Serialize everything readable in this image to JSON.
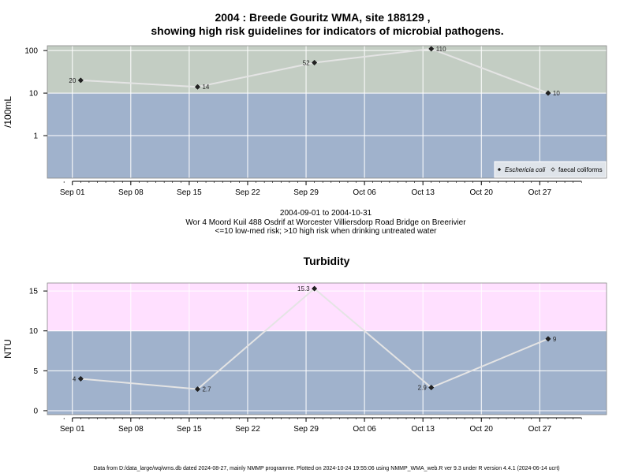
{
  "title_line1": "2004 : Breede Gouritz WMA, site 188129 ,",
  "title_line2": "showing high risk guidelines for indicators of microbial pathogens.",
  "captions": [
    "2004-09-01 to 2004-10-31",
    "Wor 4 Moord Kuil 488 Osdrif at Worcester Villiersdorp Road Bridge on Breerivier",
    "<=10 low-med risk; >10 high risk when drinking untreated water"
  ],
  "footer": "Data from D:/data_large/wq/wms.db dated 2024-08-27, mainly NMMP programme. Plotted on 2024-10-24 19:55:06 using NMMP_WMA_web.R ver 9.3 under R version 4.4.1 (2024-06-14 ucrt)",
  "chart_data": [
    {
      "type": "scatter",
      "title": "",
      "ylabel": "/100mL",
      "yscale": "log",
      "ylim": [
        0.1,
        130
      ],
      "yticks": [
        1,
        10,
        100
      ],
      "xlim": [
        "2004-08-29",
        "2004-11-04"
      ],
      "x_ticks": [
        {
          "date": "2004-09-01",
          "label": "Sep 01"
        },
        {
          "date": "2004-09-08",
          "label": "Sep 08"
        },
        {
          "date": "2004-09-15",
          "label": "Sep 15"
        },
        {
          "date": "2004-09-22",
          "label": "Sep 22"
        },
        {
          "date": "2004-09-29",
          "label": "Sep 29"
        },
        {
          "date": "2004-10-06",
          "label": "Oct 06"
        },
        {
          "date": "2004-10-13",
          "label": "Oct 13"
        },
        {
          "date": "2004-10-20",
          "label": "Oct 20"
        },
        {
          "date": "2004-10-27",
          "label": "Oct 27"
        }
      ],
      "threshold": 10,
      "colors": {
        "above": "#c3cdc3",
        "below": "#a0b2cc",
        "line": "#e4e4e4",
        "point": "#222222"
      },
      "grid": true,
      "legend_position": "bottom-right",
      "series": [
        {
          "name": "Eschericia coli",
          "marker": "filled-diamond",
          "points": [
            {
              "x": "2004-09-02",
              "y": 20,
              "label": "20",
              "label_side": "left"
            },
            {
              "x": "2004-09-16",
              "y": 14,
              "label": "14",
              "label_side": "right"
            },
            {
              "x": "2004-09-30",
              "y": 52,
              "label": "52",
              "label_side": "left"
            },
            {
              "x": "2004-10-14",
              "y": 110,
              "label": "110",
              "label_side": "right"
            },
            {
              "x": "2004-10-28",
              "y": 10,
              "label": "10",
              "label_side": "right"
            }
          ]
        },
        {
          "name": "faecal coliforms",
          "marker": "open-diamond",
          "points": []
        }
      ]
    },
    {
      "type": "scatter",
      "title": "Turbidity",
      "ylabel": "NTU",
      "yscale": "linear",
      "ylim": [
        -0.5,
        16
      ],
      "yticks": [
        0,
        5,
        10,
        15
      ],
      "xlim": [
        "2004-08-29",
        "2004-11-04"
      ],
      "x_ticks": [
        {
          "date": "2004-09-01",
          "label": "Sep 01"
        },
        {
          "date": "2004-09-08",
          "label": "Sep 08"
        },
        {
          "date": "2004-09-15",
          "label": "Sep 15"
        },
        {
          "date": "2004-09-22",
          "label": "Sep 22"
        },
        {
          "date": "2004-09-29",
          "label": "Sep 29"
        },
        {
          "date": "2004-10-06",
          "label": "Oct 06"
        },
        {
          "date": "2004-10-13",
          "label": "Oct 13"
        },
        {
          "date": "2004-10-20",
          "label": "Oct 20"
        },
        {
          "date": "2004-10-27",
          "label": "Oct 27"
        }
      ],
      "threshold": 10,
      "colors": {
        "above": "#ffe0ff",
        "below": "#a0b2cc",
        "line": "#e4e4e4",
        "point": "#222222"
      },
      "grid": true,
      "series": [
        {
          "marker": "filled-diamond",
          "points": [
            {
              "x": "2004-09-02",
              "y": 4,
              "label": "4",
              "label_side": "left"
            },
            {
              "x": "2004-09-16",
              "y": 2.7,
              "label": "2.7",
              "label_side": "right"
            },
            {
              "x": "2004-09-30",
              "y": 15.3,
              "label": "15.3",
              "label_side": "left"
            },
            {
              "x": "2004-10-14",
              "y": 2.9,
              "label": "2.9",
              "label_side": "left"
            },
            {
              "x": "2004-10-28",
              "y": 9,
              "label": "9",
              "label_side": "right"
            }
          ]
        }
      ]
    }
  ]
}
